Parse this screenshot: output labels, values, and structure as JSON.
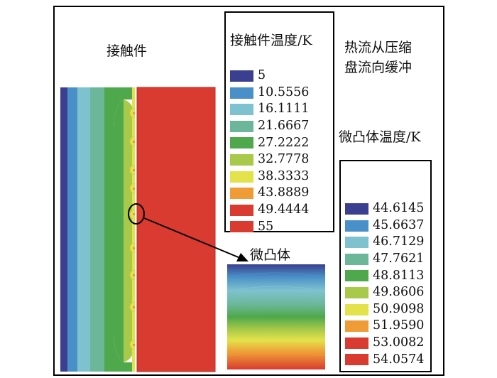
{
  "labels": {
    "contact_part": "接触件",
    "heat_flow": [
      "热流从压缩",
      "盘流向缓冲"
    ],
    "micro_asperity": "微凸体"
  },
  "legend_contact": {
    "title": "接触件温度/K",
    "entries": [
      {
        "value": "5",
        "color": "#3b3f8f"
      },
      {
        "value": "10.5556",
        "color": "#4a90c8"
      },
      {
        "value": "16.1111",
        "color": "#7fc2cf"
      },
      {
        "value": "21.6667",
        "color": "#6cb79a"
      },
      {
        "value": "27.2222",
        "color": "#4fa84b"
      },
      {
        "value": "32.7778",
        "color": "#a9c94a"
      },
      {
        "value": "38.3333",
        "color": "#e3e24a"
      },
      {
        "value": "43.8889",
        "color": "#ef9b36"
      },
      {
        "value": "49.4444",
        "color": "#d93b30"
      },
      {
        "value": "55",
        "color": "#d93b30"
      }
    ]
  },
  "legend_asperity": {
    "title": "微凸体温度/K",
    "entries": [
      {
        "value": "44.6145",
        "color": "#3b3f8f"
      },
      {
        "value": "45.6637",
        "color": "#4a90c8"
      },
      {
        "value": "46.7129",
        "color": "#7fc2cf"
      },
      {
        "value": "47.7621",
        "color": "#6cb79a"
      },
      {
        "value": "48.8113",
        "color": "#4fa84b"
      },
      {
        "value": "49.8606",
        "color": "#a9c94a"
      },
      {
        "value": "50.9098",
        "color": "#e3e24a"
      },
      {
        "value": "51.9590",
        "color": "#ef9b36"
      },
      {
        "value": "53.0082",
        "color": "#d93b30"
      },
      {
        "value": "54.0574",
        "color": "#d93b30"
      }
    ]
  }
}
